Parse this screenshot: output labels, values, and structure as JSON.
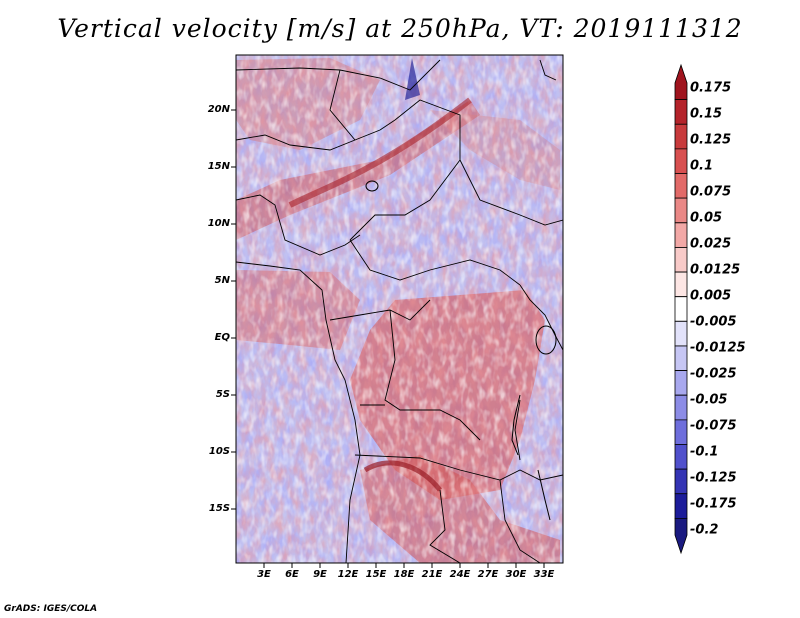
{
  "title": "Vertical velocity [m/s] at 250hPa, VT: 2019111312",
  "credit": "GrADS: IGES/COLA",
  "map": {
    "lon_range": [
      0,
      35
    ],
    "lat_range": [
      -20,
      24
    ],
    "lat_labels": [
      "20N",
      "15N",
      "10N",
      "5N",
      "EQ",
      "5S",
      "10S",
      "15S"
    ],
    "lat_values": [
      20,
      15,
      10,
      5,
      0,
      -5,
      -10,
      -15
    ],
    "lon_labels": [
      "3E",
      "6E",
      "9E",
      "12E",
      "15E",
      "18E",
      "21E",
      "24E",
      "27E",
      "30E",
      "33E"
    ],
    "lon_values": [
      3,
      6,
      9,
      12,
      15,
      18,
      21,
      24,
      27,
      30,
      33
    ]
  },
  "colorbar": {
    "labels": [
      "0.175",
      "0.15",
      "0.125",
      "0.1",
      "0.075",
      "0.05",
      "0.025",
      "0.0125",
      "0.005",
      "-0.005",
      "-0.0125",
      "-0.025",
      "-0.05",
      "-0.075",
      "-0.1",
      "-0.125",
      "-0.175",
      "-0.2"
    ],
    "colors": [
      "#a0141e",
      "#b4232a",
      "#c83a3c",
      "#d85050",
      "#e26a68",
      "#ea8886",
      "#f2a8a6",
      "#f8cac8",
      "#fde6e4",
      "#ffffff",
      "#e2e2fa",
      "#c6c6f4",
      "#a8a8ee",
      "#8c8ce6",
      "#6e6edc",
      "#5050cc",
      "#3434b4",
      "#1c1c9a",
      "#1a1a80"
    ]
  }
}
